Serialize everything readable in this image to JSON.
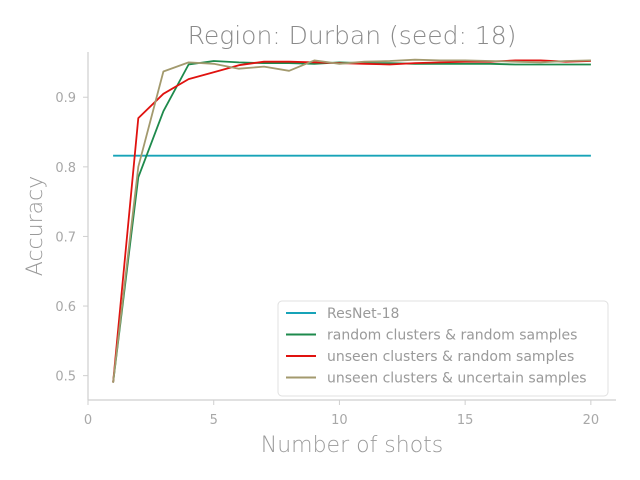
{
  "chart_data": {
    "type": "line",
    "title": "Region: Durban (seed: 18)",
    "xlabel": "Number of shots",
    "ylabel": "Accuracy",
    "xlim": [
      0,
      21
    ],
    "ylim": [
      0.465,
      0.965
    ],
    "xticks": [
      0,
      5,
      10,
      15,
      20
    ],
    "yticks": [
      0.5,
      0.6,
      0.7,
      0.8,
      0.9
    ],
    "grid": false,
    "legend_position": "lower-right",
    "series": [
      {
        "name": "ResNet-18",
        "color": "#17a3b8",
        "x": [
          1,
          20
        ],
        "y": [
          0.816,
          0.816
        ]
      },
      {
        "name": "random clusters & random samples",
        "color": "#1e8a4c",
        "x": [
          1,
          2,
          3,
          4,
          5,
          6,
          7,
          8,
          9,
          10,
          11,
          12,
          13,
          14,
          15,
          16,
          17,
          18,
          19,
          20
        ],
        "y": [
          0.49,
          0.785,
          0.88,
          0.947,
          0.952,
          0.95,
          0.949,
          0.949,
          0.948,
          0.95,
          0.949,
          0.949,
          0.948,
          0.948,
          0.948,
          0.948,
          0.947,
          0.947,
          0.947,
          0.947
        ]
      },
      {
        "name": "unseen clusters & random samples",
        "color": "#e0120f",
        "x": [
          1,
          2,
          3,
          4,
          5,
          6,
          7,
          8,
          9,
          10,
          11,
          12,
          13,
          14,
          15,
          16,
          17,
          18,
          19,
          20
        ],
        "y": [
          0.49,
          0.87,
          0.905,
          0.926,
          0.936,
          0.946,
          0.951,
          0.951,
          0.95,
          0.949,
          0.948,
          0.947,
          0.949,
          0.95,
          0.951,
          0.951,
          0.953,
          0.953,
          0.951,
          0.952
        ]
      },
      {
        "name": "unseen clusters & uncertain samples",
        "color": "#a39a6e",
        "x": [
          1,
          2,
          3,
          4,
          5,
          6,
          7,
          8,
          9,
          10,
          11,
          12,
          13,
          14,
          15,
          16,
          17,
          18,
          19,
          20
        ],
        "y": [
          0.49,
          0.8,
          0.937,
          0.95,
          0.948,
          0.941,
          0.944,
          0.938,
          0.953,
          0.948,
          0.951,
          0.952,
          0.954,
          0.953,
          0.953,
          0.952,
          0.951,
          0.95,
          0.952,
          0.953
        ]
      }
    ]
  }
}
